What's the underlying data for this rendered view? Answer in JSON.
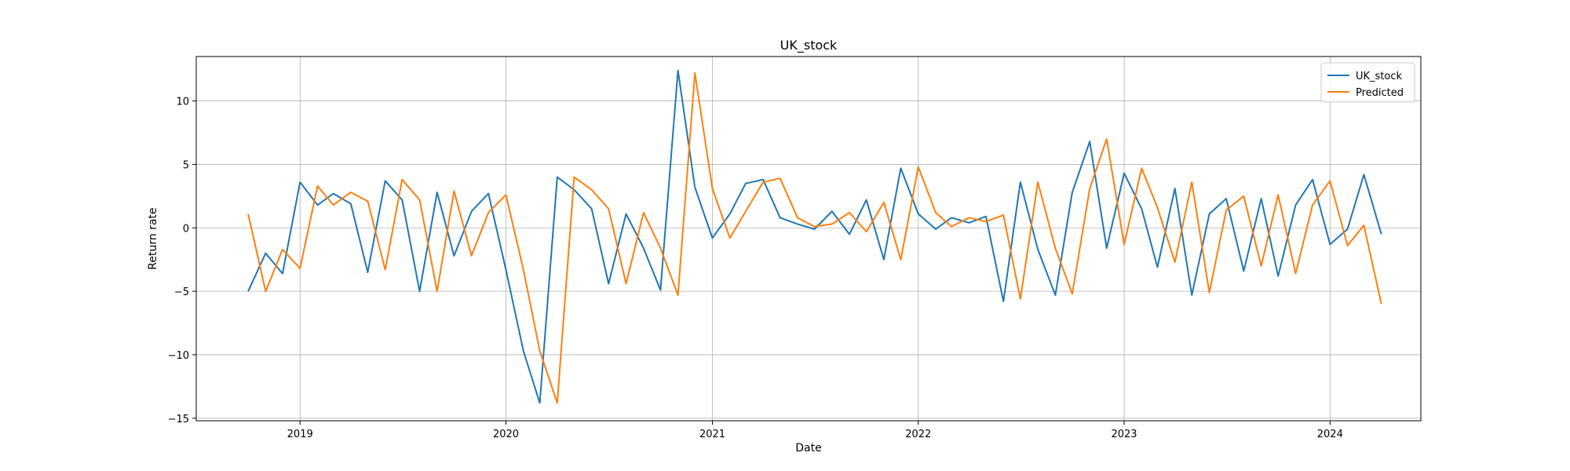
{
  "chart_data": {
    "type": "line",
    "title": "UK_stock",
    "xlabel": "Date",
    "ylabel": "Return rate",
    "x_ticks": [
      "2019",
      "2020",
      "2021",
      "2022",
      "2023",
      "2024"
    ],
    "y_ticks": [
      "−15",
      "−10",
      "−5",
      "0",
      "5",
      "10"
    ],
    "xlim": [
      "2018-07-01",
      "2024-06-10"
    ],
    "ylim": [
      -15.2,
      13.5
    ],
    "grid": true,
    "legend_position": "top-right",
    "x": [
      "2018-10",
      "2018-11",
      "2018-12",
      "2019-01",
      "2019-02",
      "2019-03",
      "2019-04",
      "2019-05",
      "2019-06",
      "2019-07",
      "2019-08",
      "2019-09",
      "2019-10",
      "2019-11",
      "2019-12",
      "2020-01",
      "2020-02",
      "2020-03",
      "2020-04",
      "2020-05",
      "2020-06",
      "2020-07",
      "2020-08",
      "2020-09",
      "2020-10",
      "2020-11",
      "2020-12",
      "2021-01",
      "2021-02",
      "2021-03",
      "2021-04",
      "2021-05",
      "2021-06",
      "2021-07",
      "2021-08",
      "2021-09",
      "2021-10",
      "2021-11",
      "2021-12",
      "2022-01",
      "2022-02",
      "2022-03",
      "2022-04",
      "2022-05",
      "2022-06",
      "2022-07",
      "2022-08",
      "2022-09",
      "2022-10",
      "2022-11",
      "2022-12",
      "2023-01",
      "2023-02",
      "2023-03",
      "2023-04",
      "2023-05",
      "2023-06",
      "2023-07",
      "2023-08",
      "2023-09",
      "2023-10",
      "2023-11",
      "2023-12",
      "2024-01",
      "2024-02",
      "2024-03",
      "2024-04"
    ],
    "series": [
      {
        "name": "UK_stock",
        "color": "#1f77b4",
        "values": [
          -5.0,
          -2.0,
          -3.6,
          3.6,
          1.8,
          2.7,
          1.9,
          -3.5,
          3.7,
          2.2,
          -5.0,
          2.8,
          -2.2,
          1.3,
          2.7,
          -3.3,
          -9.7,
          -13.8,
          4.0,
          3.0,
          1.5,
          -4.4,
          1.1,
          -1.6,
          -4.9,
          12.4,
          3.2,
          -0.8,
          1.1,
          3.5,
          3.8,
          0.8,
          0.3,
          -0.1,
          1.3,
          -0.5,
          2.2,
          -2.5,
          4.7,
          1.1,
          -0.1,
          0.8,
          0.4,
          0.9,
          -5.8,
          3.6,
          -1.7,
          -5.3,
          2.8,
          6.8,
          -1.6,
          4.3,
          1.5,
          -3.1,
          3.1,
          -5.3,
          1.1,
          2.3,
          -3.4,
          2.3,
          -3.8,
          1.8,
          3.8,
          -1.3,
          -0.1,
          4.2,
          -0.5
        ]
      },
      {
        "name": "Predicted",
        "color": "#ff7f0e",
        "values": [
          1.1,
          -5.0,
          -1.7,
          -3.2,
          3.3,
          1.8,
          2.8,
          2.1,
          -3.3,
          3.8,
          2.2,
          -5.0,
          2.9,
          -2.2,
          1.2,
          2.6,
          -3.3,
          -9.7,
          -13.8,
          4.0,
          3.0,
          1.5,
          -4.4,
          1.2,
          -1.6,
          -5.3,
          12.2,
          3.1,
          -0.8,
          1.3,
          3.6,
          3.9,
          0.8,
          0.1,
          0.3,
          1.2,
          -0.3,
          2.0,
          -2.5,
          4.8,
          1.2,
          0.1,
          0.8,
          0.5,
          1.0,
          -5.6,
          3.6,
          -1.6,
          -5.2,
          3.1,
          7.0,
          -1.3,
          4.7,
          1.6,
          -2.7,
          3.6,
          -5.1,
          1.4,
          2.5,
          -3.0,
          2.6,
          -3.6,
          1.8,
          3.7,
          -1.4,
          0.2,
          -6.0
        ]
      }
    ]
  }
}
